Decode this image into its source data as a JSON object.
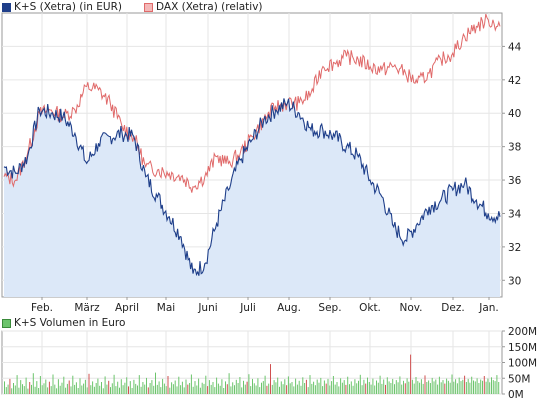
{
  "colors": {
    "ks_line": "#1f3f8a",
    "ks_fill": "#dce8f8",
    "dax_line": "#e06a6a",
    "volume_bar": "#6cc46c",
    "volume_bar_alt": "#d05050",
    "grid": "#e6e6e6",
    "axis": "#999999"
  },
  "legend": {
    "ks": "K+S (Xetra) (in EUR)",
    "dax": "DAX (Xetra) (relativ)",
    "volume": "K+S Volumen in Euro"
  },
  "chart_data": [
    {
      "type": "line",
      "months": [
        "Feb.",
        "März",
        "April",
        "Mai",
        "Juni",
        "Juli",
        "Aug.",
        "Sep.",
        "Okt.",
        "Nov.",
        "Dez.",
        "Jan."
      ],
      "yticks": [
        "30",
        "32",
        "34",
        "36",
        "38",
        "40",
        "42",
        "44"
      ],
      "ylim": [
        29,
        46
      ],
      "grid": true,
      "legend_position": "top-left",
      "x": [
        "Jan",
        "Jan",
        "Feb.",
        "Feb.",
        "Feb.",
        "Feb.",
        "März",
        "März",
        "März",
        "April",
        "April",
        "April",
        "Mai",
        "Mai",
        "Mai",
        "Mai",
        "Juni",
        "Juni",
        "Juni",
        "Juni",
        "Juli",
        "Juli",
        "Juli",
        "Juli",
        "Aug.",
        "Aug.",
        "Aug.",
        "Sep.",
        "Sep.",
        "Sep.",
        "Okt.",
        "Okt.",
        "Okt.",
        "Nov.",
        "Nov.",
        "Nov.",
        "Nov.",
        "Dez.",
        "Dez.",
        "Dez.",
        "Jan.",
        "Jan.",
        "Jan."
      ],
      "series": [
        {
          "name": "K+S (Xetra) (in EUR)",
          "values": [
            36.8,
            36.4,
            37.4,
            40.2,
            40.0,
            39.8,
            38.8,
            37.0,
            38.2,
            38.6,
            38.8,
            38.6,
            36.2,
            35.0,
            33.8,
            32.6,
            30.4,
            31.0,
            33.4,
            35.4,
            37.2,
            38.4,
            39.6,
            40.2,
            40.6,
            40.0,
            39.0,
            39.0,
            38.6,
            38.0,
            37.4,
            36.0,
            35.0,
            33.2,
            32.4,
            33.4,
            34.4,
            34.8,
            35.4,
            35.8,
            34.8,
            34.0,
            33.8
          ]
        },
        {
          "name": "DAX (Xetra) (relativ)",
          "values": [
            36.2,
            36.0,
            37.6,
            40.0,
            40.2,
            39.8,
            40.2,
            41.6,
            41.4,
            40.6,
            39.2,
            38.6,
            36.8,
            36.6,
            36.4,
            36.2,
            35.6,
            36.2,
            37.4,
            37.0,
            37.6,
            38.6,
            39.6,
            40.4,
            40.6,
            40.6,
            41.2,
            42.8,
            43.0,
            43.4,
            43.2,
            42.8,
            42.6,
            42.8,
            42.4,
            41.8,
            42.4,
            43.2,
            43.6,
            44.6,
            45.2,
            45.6,
            45.2
          ]
        }
      ]
    },
    {
      "type": "bar",
      "yticks": [
        "0M",
        "50M",
        "100M",
        "150M",
        "200M"
      ],
      "ylim": [
        0,
        200
      ],
      "grid": true,
      "legend_position": "top-left",
      "series": [
        {
          "name": "K+S Volumen in Euro",
          "values": [
            40,
            22,
            30,
            48,
            18,
            35,
            27,
            60,
            20,
            44,
            31,
            25,
            52,
            17,
            38,
            29,
            66,
            23,
            41,
            19,
            57,
            28,
            34,
            46,
            21,
            39,
            25,
            62,
            30,
            18,
            47,
            26,
            36,
            55,
            20,
            32,
            43,
            24,
            58,
            29,
            37,
            19,
            50,
            27,
            33,
            45,
            21,
            64,
            28,
            40,
            23,
            35,
            49,
            26,
            38,
            18,
            56,
            30,
            42,
            22,
            34,
            61,
            25,
            39,
            20,
            47,
            28,
            36,
            53,
            24,
            41,
            19,
            45,
            32,
            27,
            60,
            23,
            38,
            30,
            51,
            21,
            35,
            44,
            26,
            68,
            29,
            40,
            22,
            48,
            33,
            25,
            57,
            20,
            37,
            31,
            43,
            24,
            55,
            28,
            39,
            21,
            46,
            30,
            35,
            62,
            23,
            41,
            27,
            49,
            20,
            36,
            32,
            58,
            25,
            44,
            29,
            38,
            22,
            52,
            33,
            26,
            47,
            19,
            40,
            31,
            66,
            24,
            37,
            28,
            45,
            35,
            54,
            21,
            42,
            30,
            39,
            63,
            25,
            48,
            34,
            27,
            50,
            22,
            36,
            41,
            58,
            26,
            33,
            95,
            29,
            44,
            37,
            52,
            23,
            40,
            31,
            47,
            28,
            56,
            34,
            38,
            24,
            49,
            30,
            42,
            26,
            53,
            35,
            45,
            22,
            60,
            32,
            39,
            28,
            46,
            36,
            51,
            25,
            43,
            33,
            48,
            27,
            41,
            57,
            30,
            38,
            24,
            50,
            36,
            44,
            29,
            55,
            31,
            40,
            26,
            47,
            34,
            42,
            61,
            28,
            45,
            33,
            52,
            38,
            30,
            49,
            27,
            43,
            36,
            58,
            32,
            46,
            29,
            53,
            40,
            35,
            48,
            31,
            44,
            37,
            56,
            30,
            42,
            34,
            50,
            39,
            125,
            45,
            33,
            54,
            41,
            36,
            47,
            32,
            59,
            38,
            43,
            35,
            51,
            40,
            46,
            30,
            55,
            37,
            44,
            33,
            49,
            42,
            36,
            62,
            39,
            47,
            34,
            52,
            41,
            45,
            58,
            38,
            48,
            36,
            55,
            43,
            40,
            50,
            35,
            46,
            42,
            57,
            39,
            49,
            37,
            53,
            44,
            41,
            60,
            38
          ]
        }
      ]
    }
  ]
}
